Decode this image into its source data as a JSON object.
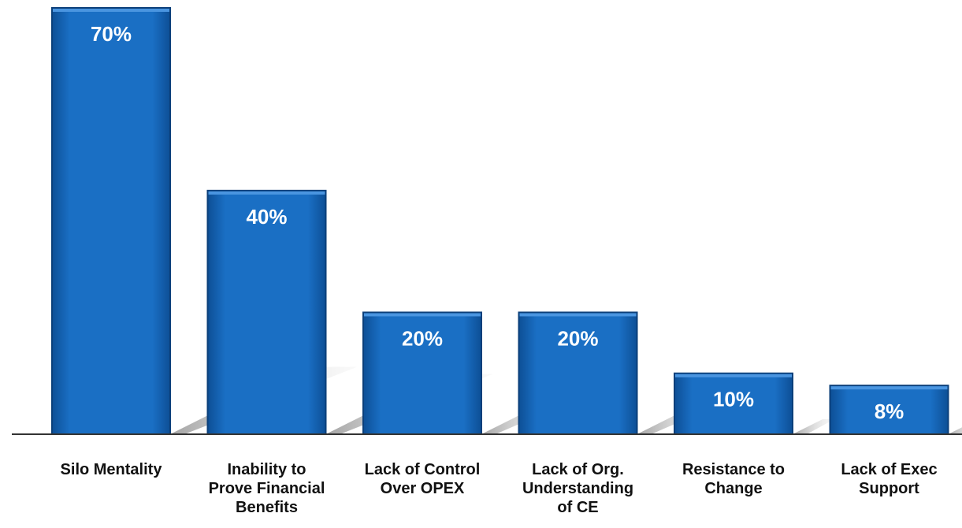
{
  "chart_data": {
    "type": "bar",
    "categories": [
      "Silo Mentality",
      "Inability to\nProve Financial\nBenefits",
      "Lack of Control\nOver OPEX",
      "Lack of Org.\nUnderstanding\nof CE",
      "Resistance to\nChange",
      "Lack of Exec\nSupport"
    ],
    "values": [
      70,
      40,
      20,
      20,
      10,
      8
    ],
    "data_labels": [
      "70%",
      "40%",
      "20%",
      "20%",
      "10%",
      "8%"
    ],
    "unit": "%",
    "title": "",
    "xlabel": "",
    "ylabel": "",
    "ylim": [
      0,
      70
    ],
    "grid": false,
    "legend": "none",
    "bar_color": "#1a6fc4",
    "bar_edge_color": "#0b3f7a",
    "label_color": "#ffffff",
    "shadow_color": "#c8c8c8"
  }
}
